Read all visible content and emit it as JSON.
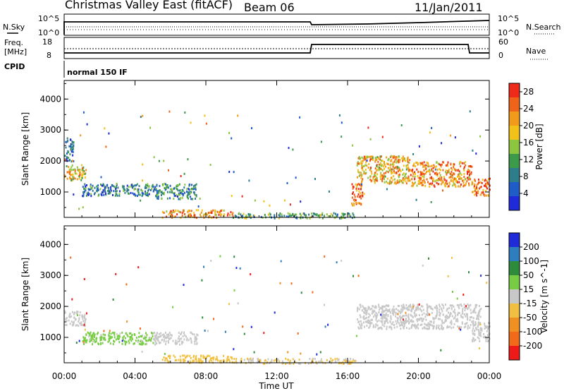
{
  "header": {
    "title": "Christmas Valley East (fitACF)",
    "beam": "Beam 06",
    "date": "11/Jan/2011"
  },
  "top_panels": {
    "nsky_label": "N.Sky",
    "nsearch_label": "N.Search",
    "freq_label_line1": "Freq.",
    "freq_label_line2": "[MHz]",
    "nave_label": "Nave",
    "cpid_label": "CPID",
    "cpid_value": "normal 150 IF",
    "nsky_ticks": [
      "10^5",
      "10^0"
    ],
    "nsearch_ticks": [
      "10^5",
      "10^0"
    ],
    "freq_ticks": [
      "18",
      "8"
    ],
    "nave_ticks": [
      "60",
      "0"
    ]
  },
  "colors": {
    "power": [
      "#1f2ad8",
      "#1f5cc8",
      "#2e7d8b",
      "#3c9a4a",
      "#8cc63f",
      "#f2c11a",
      "#f29a1a",
      "#f0641a",
      "#ee2a1a"
    ],
    "velocity": [
      "#1f2ad8",
      "#2e7dbf",
      "#2e8b3c",
      "#77cc44",
      "#c8c8c8",
      "#f2c040",
      "#f09020",
      "#f06a1a",
      "#ee1a1a"
    ]
  },
  "chart_data": [
    {
      "type": "heatmap",
      "title": "",
      "xlabel": "Time UT",
      "ylabel": "Slant Range [km]",
      "xticks": [
        "00:00",
        "04:00",
        "08:00",
        "12:00",
        "16:00",
        "20:00",
        "00:00"
      ],
      "yticks": [
        "1000",
        "2000",
        "3000",
        "4000"
      ],
      "xlim_hours": [
        0,
        24
      ],
      "ylim_km": [
        180,
        4600
      ],
      "colorbar": {
        "label": "Power [dB]",
        "ticks": [
          "4",
          "8",
          "12",
          "16",
          "20",
          "24",
          "28"
        ],
        "range": [
          0,
          30
        ]
      },
      "scatter_regions": [
        {
          "t_start": 0.0,
          "t_end": 1.2,
          "range_low": 1400,
          "range_high": 1900,
          "value": 18
        },
        {
          "t_start": 0.0,
          "t_end": 0.5,
          "range_low": 2000,
          "range_high": 2800,
          "value": 6
        },
        {
          "t_start": 1.0,
          "t_end": 5.0,
          "range_low": 900,
          "range_high": 1300,
          "value": 8
        },
        {
          "t_start": 5.0,
          "t_end": 7.5,
          "range_low": 800,
          "range_high": 1300,
          "value": 10
        },
        {
          "t_start": 5.5,
          "t_end": 9.5,
          "range_low": 200,
          "range_high": 450,
          "value": 22
        },
        {
          "t_start": 9.5,
          "t_end": 16.5,
          "range_low": 180,
          "range_high": 350,
          "value": 12
        },
        {
          "t_start": 16.2,
          "t_end": 16.9,
          "range_low": 600,
          "range_high": 1300,
          "value": 24
        },
        {
          "t_start": 16.5,
          "t_end": 19.5,
          "range_low": 1300,
          "range_high": 2200,
          "value": 20
        },
        {
          "t_start": 19.5,
          "t_end": 23.0,
          "range_low": 1200,
          "range_high": 2000,
          "value": 22
        },
        {
          "t_start": 23.0,
          "t_end": 24.0,
          "range_low": 900,
          "range_high": 1500,
          "value": 24
        }
      ]
    },
    {
      "type": "heatmap",
      "title": "",
      "xlabel": "Time UT",
      "ylabel": "Slant Range [km]",
      "xticks": [
        "00:00",
        "04:00",
        "08:00",
        "12:00",
        "16:00",
        "20:00",
        "00:00"
      ],
      "yticks": [
        "1000",
        "2000",
        "3000",
        "4000"
      ],
      "xlim_hours": [
        0,
        24
      ],
      "ylim_km": [
        180,
        4600
      ],
      "colorbar": {
        "label": "Velocity [m s^-1]",
        "ticks": [
          "200",
          "100",
          "50",
          "15",
          "-15",
          "-50",
          "-100",
          "-200"
        ],
        "range": [
          -250,
          250
        ]
      },
      "scatter_regions": [
        {
          "t_start": 0.0,
          "t_end": 1.2,
          "range_low": 1400,
          "range_high": 1900,
          "value": 0
        },
        {
          "t_start": 1.0,
          "t_end": 5.0,
          "range_low": 800,
          "range_high": 1200,
          "value": 40
        },
        {
          "t_start": 5.0,
          "t_end": 7.5,
          "range_low": 800,
          "range_high": 1200,
          "value": 0
        },
        {
          "t_start": 5.5,
          "t_end": 9.5,
          "range_low": 200,
          "range_high": 450,
          "value": -60
        },
        {
          "t_start": 9.5,
          "t_end": 16.5,
          "range_low": 180,
          "range_high": 350,
          "value": -30
        },
        {
          "t_start": 16.5,
          "t_end": 23.5,
          "range_low": 1300,
          "range_high": 2100,
          "value": 0
        },
        {
          "t_start": 23.0,
          "t_end": 24.0,
          "range_low": 900,
          "range_high": 1500,
          "value": 0
        }
      ]
    }
  ]
}
